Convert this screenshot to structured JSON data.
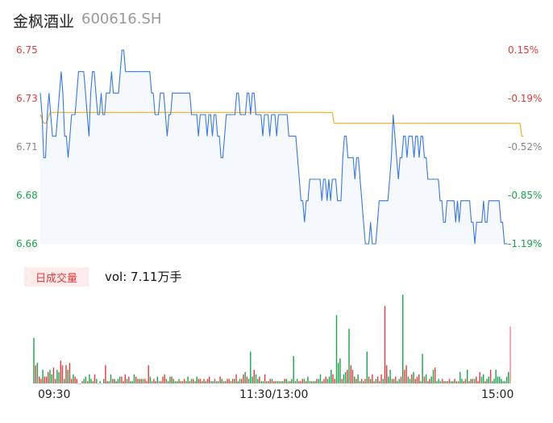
{
  "header": {
    "name": "金枫酒业",
    "code": "600616.SH"
  },
  "chart_data": [
    {
      "type": "line",
      "x_labels": [
        "09:30",
        "11:30/13:00",
        "15:00"
      ],
      "y_ticks": [
        "6.75",
        "6.73",
        "6.71",
        "6.68",
        "6.66"
      ],
      "y_tick_colors": [
        "#e23b3b",
        "#e23b3b",
        "#888888",
        "#1aa34a",
        "#1aa34a"
      ],
      "pct_ticks": [
        "0.15%",
        "-0.19%",
        "-0.52%",
        "-0.85%",
        "-1.19%"
      ],
      "pct_tick_colors": [
        "#e23b3b",
        "#e23b3b",
        "#888888",
        "#1aa34a",
        "#1aa34a"
      ],
      "ylim": [
        6.66,
        6.75
      ],
      "colors": {
        "price": "#3a78e0",
        "avg": "#f0b020",
        "fill": "#f5f8fd"
      },
      "series": [
        {
          "values": [
            6.73,
            6.72,
            6.7,
            6.7,
            6.72,
            6.73,
            6.72,
            6.71,
            6.71,
            6.71,
            6.72,
            6.73,
            6.74,
            6.73,
            6.71,
            6.71,
            6.7,
            6.71,
            6.72,
            6.72,
            6.72,
            6.73,
            6.74,
            6.74,
            6.74,
            6.74,
            6.73,
            6.72,
            6.71,
            6.73,
            6.74,
            6.74,
            6.73,
            6.72,
            6.72,
            6.73,
            6.72,
            6.72,
            6.73,
            6.73,
            6.73,
            6.74,
            6.73,
            6.73,
            6.73,
            6.73,
            6.74,
            6.75,
            6.75,
            6.74,
            6.74,
            6.74,
            6.74,
            6.74,
            6.74,
            6.74,
            6.74,
            6.74,
            6.74,
            6.74,
            6.74,
            6.74,
            6.74,
            6.74,
            6.73,
            6.73,
            6.72,
            6.72,
            6.72,
            6.73,
            6.73,
            6.73,
            6.72,
            6.71,
            6.72,
            6.72,
            6.73,
            6.73,
            6.73,
            6.73,
            6.73,
            6.73,
            6.73,
            6.73,
            6.73,
            6.73,
            6.73,
            6.72,
            6.72,
            6.72,
            6.72,
            6.71,
            6.72,
            6.72,
            6.72,
            6.72,
            6.71,
            6.72,
            6.72,
            6.71,
            6.72,
            6.72,
            6.71,
            6.71,
            6.7,
            6.7,
            6.71,
            6.72,
            6.72,
            6.72,
            6.72,
            6.72,
            6.72,
            6.73,
            6.73,
            6.72,
            6.72,
            6.72,
            6.72,
            6.73,
            6.73,
            6.72,
            6.73,
            6.73,
            6.72,
            6.72,
            6.72,
            6.72,
            6.71,
            6.72,
            6.72,
            6.72,
            6.71,
            6.72,
            6.72,
            6.72,
            6.71,
            6.72,
            6.72,
            6.72,
            6.72,
            6.72,
            6.72,
            6.71,
            6.71,
            6.71,
            6.71,
            6.71,
            6.7,
            6.69,
            6.68,
            6.68,
            6.67,
            6.68,
            6.68,
            6.69,
            6.69,
            6.69,
            6.69,
            6.69,
            6.69,
            6.69,
            6.68,
            6.69,
            6.69,
            6.68,
            6.69,
            6.68,
            6.69,
            6.69,
            6.69,
            6.68,
            6.68,
            6.68,
            6.7,
            6.71,
            6.71,
            6.7,
            6.7,
            6.7,
            6.7,
            6.69,
            6.7,
            6.7,
            6.69,
            6.68,
            6.67,
            6.66,
            6.66,
            6.66,
            6.67,
            6.66,
            6.66,
            6.66,
            6.67,
            6.68,
            6.68,
            6.68,
            6.68,
            6.68,
            6.68,
            6.69,
            6.7,
            6.72,
            6.71,
            6.7,
            6.69,
            6.7,
            6.7,
            6.71,
            6.71,
            6.7,
            6.71,
            6.71,
            6.71,
            6.7,
            6.71,
            6.71,
            6.7,
            6.71,
            6.71,
            6.7,
            6.7,
            6.69,
            6.69,
            6.69,
            6.69,
            6.69,
            6.69,
            6.69,
            6.68,
            6.68,
            6.67,
            6.67,
            6.68,
            6.68,
            6.68,
            6.68,
            6.68,
            6.67,
            6.68,
            6.67,
            6.68,
            6.68,
            6.68,
            6.68,
            6.68,
            6.68,
            6.67,
            6.67,
            6.66,
            6.67,
            6.67,
            6.67,
            6.67,
            6.68,
            6.67,
            6.67,
            6.68,
            6.68,
            6.68,
            6.68,
            6.68,
            6.68,
            6.68,
            6.67,
            6.67,
            6.66,
            6.66,
            6.66
          ]
        },
        {
          "values": [
            6.72,
            6.718,
            6.716,
            6.716,
            6.717,
            6.72,
            6.721,
            6.721,
            6.721,
            6.721,
            6.721,
            6.721,
            6.721,
            6.721,
            6.721,
            6.721,
            6.721,
            6.721,
            6.721,
            6.721,
            6.721,
            6.721,
            6.721,
            6.721,
            6.721,
            6.721,
            6.721,
            6.721,
            6.721,
            6.721,
            6.721,
            6.721,
            6.721,
            6.721,
            6.721,
            6.721,
            6.721,
            6.721,
            6.721,
            6.721,
            6.721,
            6.721,
            6.721,
            6.721,
            6.721,
            6.721,
            6.721,
            6.721,
            6.721,
            6.721,
            6.721,
            6.721,
            6.721,
            6.721,
            6.721,
            6.721,
            6.721,
            6.721,
            6.721,
            6.721,
            6.721,
            6.721,
            6.721,
            6.721,
            6.721,
            6.721,
            6.721,
            6.721,
            6.721,
            6.721,
            6.721,
            6.721,
            6.721,
            6.721,
            6.721,
            6.721,
            6.721,
            6.721,
            6.721,
            6.721,
            6.721,
            6.721,
            6.721,
            6.721,
            6.721,
            6.721,
            6.721,
            6.721,
            6.721,
            6.721,
            6.721,
            6.721,
            6.721,
            6.721,
            6.721,
            6.721,
            6.721,
            6.721,
            6.721,
            6.721,
            6.721,
            6.721,
            6.721,
            6.721,
            6.721,
            6.721,
            6.721,
            6.721,
            6.721,
            6.721,
            6.721,
            6.721,
            6.721,
            6.721,
            6.721,
            6.721,
            6.721,
            6.721,
            6.721,
            6.721,
            6.721,
            6.721,
            6.721,
            6.721,
            6.721,
            6.721,
            6.721,
            6.721,
            6.721,
            6.721,
            6.721,
            6.721,
            6.721,
            6.721,
            6.721,
            6.721,
            6.721,
            6.721,
            6.721,
            6.721,
            6.721,
            6.721,
            6.721,
            6.721,
            6.721,
            6.721,
            6.721,
            6.721,
            6.721,
            6.721,
            6.721,
            6.721,
            6.721,
            6.721,
            6.721,
            6.721,
            6.721,
            6.721,
            6.721,
            6.721,
            6.721,
            6.721,
            6.721,
            6.721,
            6.721,
            6.721,
            6.721,
            6.721,
            6.721,
            6.716,
            6.716,
            6.716,
            6.716,
            6.716,
            6.716,
            6.716,
            6.716,
            6.716,
            6.716,
            6.716,
            6.716,
            6.716,
            6.716,
            6.716,
            6.716,
            6.716,
            6.716,
            6.716,
            6.716,
            6.716,
            6.716,
            6.716,
            6.716,
            6.716,
            6.716,
            6.716,
            6.716,
            6.716,
            6.716,
            6.716,
            6.716,
            6.716,
            6.716,
            6.716,
            6.716,
            6.716,
            6.716,
            6.716,
            6.716,
            6.716,
            6.716,
            6.716,
            6.716,
            6.716,
            6.716,
            6.716,
            6.716,
            6.716,
            6.716,
            6.716,
            6.716,
            6.716,
            6.716,
            6.716,
            6.716,
            6.716,
            6.716,
            6.716,
            6.716,
            6.716,
            6.716,
            6.716,
            6.716,
            6.716,
            6.716,
            6.716,
            6.716,
            6.716,
            6.716,
            6.716,
            6.716,
            6.716,
            6.716,
            6.716,
            6.716,
            6.716,
            6.716,
            6.716,
            6.716,
            6.716,
            6.716,
            6.716,
            6.716,
            6.716,
            6.716,
            6.716,
            6.716,
            6.716,
            6.716,
            6.716,
            6.716,
            6.716,
            6.716,
            6.716,
            6.716,
            6.716,
            6.716,
            6.716,
            6.716,
            6.716,
            6.716,
            6.716,
            6.716,
            6.716,
            6.716,
            6.716,
            6.716,
            6.71,
            6.71
          ]
        }
      ]
    },
    {
      "type": "bar",
      "label": "日成交量",
      "summary": "vol: 7.11万手",
      "colors": {
        "up": "#e23b3b",
        "down": "#1aa34a",
        "last": "#f08a8a"
      },
      "values": [
        20,
        8,
        9,
        3,
        2,
        6,
        3,
        3,
        5,
        6,
        4,
        7,
        2,
        6,
        5,
        10,
        8,
        2,
        8,
        6,
        9,
        2,
        4,
        3,
        2,
        0,
        0,
        1,
        2,
        3,
        1,
        4,
        2,
        1,
        4,
        2,
        0,
        1,
        0,
        2,
        8,
        1,
        1,
        4,
        2,
        2,
        1,
        2,
        3,
        3,
        1,
        4,
        2,
        3,
        1,
        1,
        4,
        3,
        2,
        2,
        2,
        2,
        2,
        1,
        8,
        3,
        1,
        2,
        1,
        3,
        1,
        1,
        3,
        4,
        2,
        1,
        3,
        3,
        2,
        1,
        1,
        2,
        1,
        1,
        2,
        1,
        3,
        1,
        2,
        2,
        1,
        3,
        2,
        2,
        1,
        2,
        1,
        2,
        3,
        1,
        1,
        2,
        1,
        1,
        3,
        2,
        1,
        1,
        2,
        2,
        1,
        2,
        2,
        4,
        1,
        2,
        2,
        4,
        5,
        3,
        2,
        14,
        3,
        6,
        4,
        2,
        3,
        1,
        1,
        4,
        1,
        1,
        2,
        2,
        1,
        1,
        1,
        1,
        1,
        1,
        2,
        2,
        1,
        1,
        2,
        12,
        1,
        2,
        1,
        1,
        2,
        2,
        1,
        3,
        1,
        1,
        1,
        1,
        2,
        2,
        4,
        1,
        2,
        3,
        2,
        3,
        6,
        4,
        2,
        30,
        9,
        11,
        2,
        4,
        5,
        6,
        24,
        8,
        6,
        3,
        2,
        4,
        1,
        2,
        1,
        2,
        14,
        3,
        2,
        4,
        1,
        2,
        3,
        1,
        4,
        2,
        34,
        8,
        3,
        6,
        2,
        2,
        3,
        1,
        2,
        3,
        39,
        6,
        8,
        3,
        2,
        4,
        5,
        2,
        3,
        4,
        1,
        13,
        3,
        4,
        1,
        2,
        3,
        6,
        7,
        1,
        2,
        1,
        2,
        1,
        1,
        1,
        2,
        1,
        1,
        2,
        1,
        1,
        5,
        2,
        1,
        2,
        6,
        1,
        2,
        2,
        2,
        3,
        1,
        5,
        3,
        4,
        1,
        2,
        3,
        6,
        1,
        2,
        6,
        3,
        3,
        2,
        1,
        1,
        3,
        5,
        25
      ],
      "up": [
        0,
        1,
        0,
        1,
        1,
        0,
        1,
        1,
        1,
        0,
        0,
        1,
        1,
        0,
        0,
        1,
        1,
        0,
        1,
        0,
        1,
        1,
        0,
        1,
        1,
        0,
        1,
        1,
        0,
        0,
        1,
        0,
        0,
        1,
        1,
        0,
        1,
        0,
        1,
        0,
        1,
        1,
        0,
        0,
        1,
        0,
        1,
        0,
        0,
        1,
        1,
        1,
        0,
        1,
        0,
        0,
        0,
        1,
        1,
        0,
        1,
        0,
        1,
        1,
        1,
        0,
        0,
        1,
        1,
        0,
        0,
        1,
        1,
        1,
        0,
        1,
        0,
        1,
        0,
        0,
        1,
        0,
        1,
        1,
        1,
        0,
        0,
        1,
        0,
        1,
        0,
        0,
        1,
        1,
        0,
        1,
        0,
        1,
        1,
        0,
        0,
        1,
        0,
        0,
        1,
        0,
        1,
        0,
        1,
        1,
        0,
        1,
        0,
        1,
        0,
        0,
        1,
        1,
        0,
        1,
        0,
        0,
        0,
        1,
        0,
        0,
        1,
        0,
        0,
        1,
        0,
        1,
        1,
        0,
        1,
        1,
        0,
        0,
        1,
        0,
        1,
        0,
        0,
        1,
        0,
        0,
        1,
        0,
        1,
        1,
        1,
        0,
        1,
        0,
        0,
        1,
        0,
        0,
        1,
        0,
        0,
        0,
        1,
        1,
        0,
        0,
        0,
        1,
        1,
        0,
        0,
        0,
        1,
        0,
        0,
        1,
        0,
        1,
        1,
        0,
        1,
        0,
        0,
        1,
        0,
        1,
        0,
        1,
        0,
        1,
        1,
        0,
        1,
        0,
        1,
        0,
        1,
        1,
        0,
        0,
        1,
        0,
        1,
        0,
        0,
        1,
        0,
        1,
        1,
        0,
        0,
        1,
        0,
        1,
        1,
        1,
        0,
        0,
        1,
        0,
        1,
        1,
        0,
        0,
        1,
        0,
        0,
        0,
        1,
        1,
        0,
        1,
        1,
        0,
        0,
        1,
        0,
        1,
        0,
        0,
        1,
        1,
        0,
        1,
        0,
        1,
        0,
        1,
        1,
        1,
        0,
        0,
        1,
        0,
        0,
        1
      ]
    }
  ]
}
